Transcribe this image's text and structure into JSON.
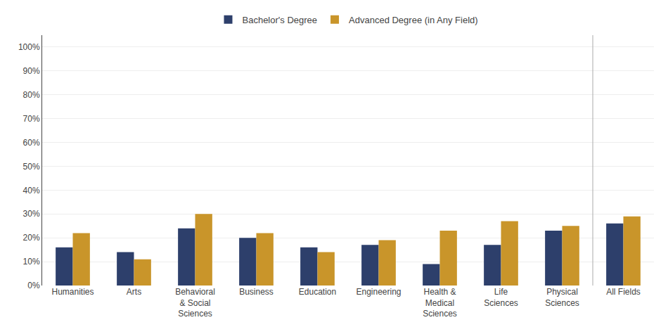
{
  "chart_data": {
    "type": "bar",
    "categories": [
      "Humanities",
      "Arts",
      "Behavioral\n& Social\nSciences",
      "Business",
      "Education",
      "Engineering",
      "Health &\nMedical\nSciences",
      "Life\nSciences",
      "Physical\nSciences",
      "All Fields"
    ],
    "series": [
      {
        "name": "Bachelor's Degree",
        "color": "#2d3f6b",
        "values": [
          16,
          14,
          24,
          20,
          16,
          17,
          9,
          17,
          23,
          26
        ]
      },
      {
        "name": "Advanced Degree (in Any Field)",
        "color": "#c9952a",
        "values": [
          22,
          11,
          30,
          22,
          14,
          19,
          23,
          27,
          25,
          29
        ]
      }
    ],
    "ylim": [
      0,
      105
    ],
    "yticks": [
      {
        "value": 0,
        "label": "0%"
      },
      {
        "value": 10,
        "label": "10%"
      },
      {
        "value": 20,
        "label": "20%"
      },
      {
        "value": 30,
        "label": "30%"
      },
      {
        "value": 40,
        "label": "40%"
      },
      {
        "value": 50,
        "label": "50%"
      },
      {
        "value": 60,
        "label": "60%"
      },
      {
        "value": 70,
        "label": "70%"
      },
      {
        "value": 80,
        "label": "80%"
      },
      {
        "value": 90,
        "label": "90%"
      },
      {
        "value": 100,
        "label": "100%"
      }
    ],
    "grid": true,
    "legend": "top"
  }
}
